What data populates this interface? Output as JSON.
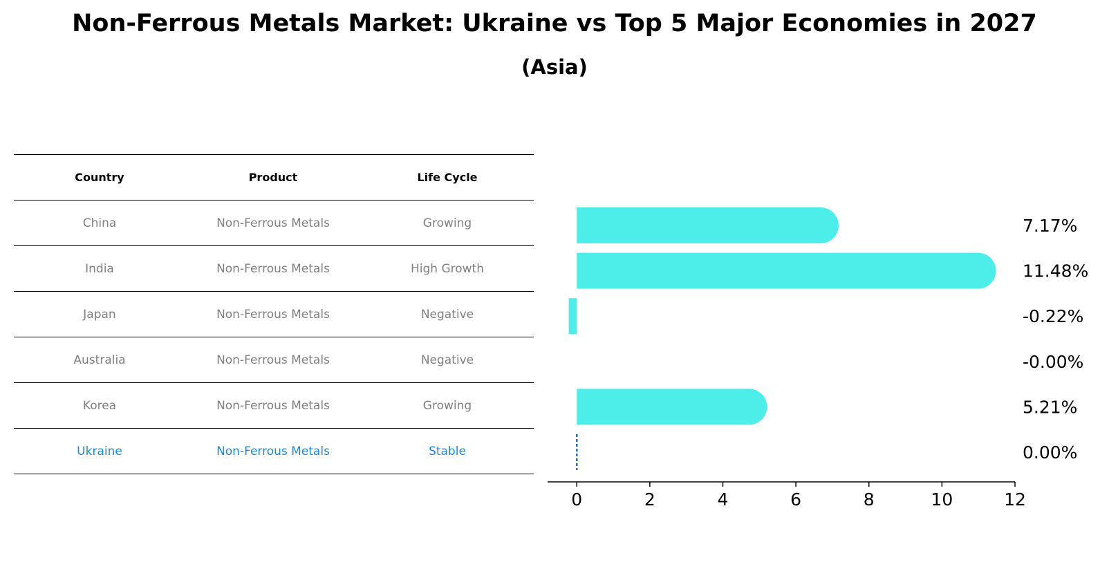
{
  "title": "Non-Ferrous Metals Market: Ukraine vs Top 5 Major Economies in 2027",
  "subtitle": "(Asia)",
  "table": {
    "headers": [
      "Country",
      "Product",
      "Life Cycle"
    ],
    "rows": [
      {
        "country": "China",
        "product": "Non-Ferrous Metals",
        "life_cycle": "Growing"
      },
      {
        "country": "India",
        "product": "Non-Ferrous Metals",
        "life_cycle": "High Growth"
      },
      {
        "country": "Japan",
        "product": "Non-Ferrous Metals",
        "life_cycle": "Negative"
      },
      {
        "country": "Australia",
        "product": "Non-Ferrous Metals",
        "life_cycle": "Negative"
      },
      {
        "country": "Korea",
        "product": "Non-Ferrous Metals",
        "life_cycle": "Growing"
      },
      {
        "country": "Ukraine",
        "product": "Non-Ferrous Metals",
        "life_cycle": "Stable"
      }
    ]
  },
  "chart_data": {
    "type": "bar",
    "orientation": "horizontal",
    "categories": [
      "China",
      "India",
      "Japan",
      "Australia",
      "Korea",
      "Ukraine"
    ],
    "values": [
      7.17,
      11.48,
      -0.22,
      -0.0,
      5.21,
      0.0
    ],
    "value_labels": [
      "7.17%",
      "11.48%",
      "-0.22%",
      "-0.00%",
      "5.21%",
      "0.00%"
    ],
    "xlim": [
      -0.8,
      12
    ],
    "xticks": [
      0,
      2,
      4,
      6,
      8,
      10,
      12
    ],
    "bar_color": "#4deeea",
    "highlight_color": "#1a6fd4",
    "highlight_category": "Ukraine"
  }
}
